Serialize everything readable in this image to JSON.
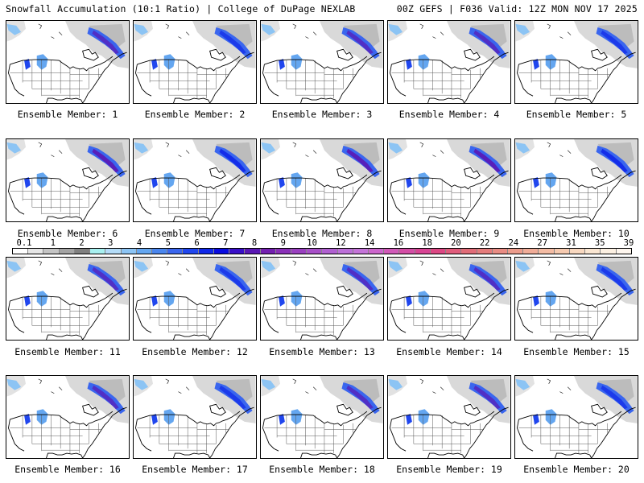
{
  "header": {
    "left": "Snowfall Accumulation (10:1 Ratio) | College of DuPage NEXLAB",
    "right": "00Z GEFS | F036 Valid: 12Z MON NOV 17 2025"
  },
  "members": [
    "Ensemble Member: 1",
    "Ensemble Member: 2",
    "Ensemble Member: 3",
    "Ensemble Member: 4",
    "Ensemble Member: 5",
    "Ensemble Member: 6",
    "Ensemble Member: 7",
    "Ensemble Member: 8",
    "Ensemble Member: 9",
    "Ensemble Member: 10",
    "Ensemble Member: 11",
    "Ensemble Member: 12",
    "Ensemble Member: 13",
    "Ensemble Member: 14",
    "Ensemble Member: 15",
    "Ensemble Member: 16",
    "Ensemble Member: 17",
    "Ensemble Member: 18",
    "Ensemble Member: 19",
    "Ensemble Member: 20"
  ],
  "scale": {
    "labels": [
      "0.1",
      "1",
      "2",
      "3",
      "4",
      "5",
      "6",
      "7",
      "8",
      "9",
      "10",
      "12",
      "14",
      "16",
      "18",
      "20",
      "22",
      "24",
      "27",
      "31",
      "35",
      "39"
    ],
    "colors": [
      "#ffffff",
      "#e6e6e6",
      "#c4c4c4",
      "#a4a4a4",
      "#808080",
      "#a8f0f0",
      "#b4dcf8",
      "#8cc4f4",
      "#64a6f0",
      "#4a86ee",
      "#3a66ee",
      "#2046ee",
      "#1028e8",
      "#0a0ce0",
      "#3a10c8",
      "#5a18b4",
      "#7420b0",
      "#8a30b8",
      "#9a40c0",
      "#a850c8",
      "#b060d0",
      "#bc70d8",
      "#c474d8",
      "#cc66cc",
      "#d05ab8",
      "#d44ea6",
      "#d84494",
      "#dc4884",
      "#e05c7c",
      "#e06c78",
      "#e47c7c",
      "#e88c84",
      "#ec9c8c",
      "#f0ac98",
      "#f4bca4",
      "#f6cab0",
      "#f8d8c0",
      "#fae6d2",
      "#fcf0e2",
      "#fef6ee"
    ]
  }
}
